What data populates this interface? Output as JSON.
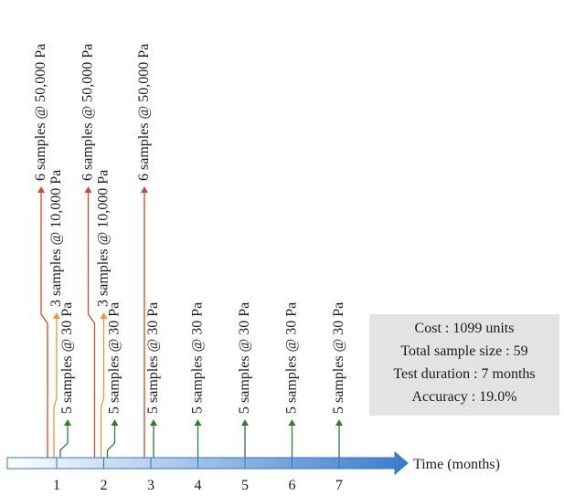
{
  "diagram": {
    "axis_label": "Time (months)",
    "ticks": [
      "1",
      "2",
      "3",
      "4",
      "5",
      "6",
      "7"
    ],
    "colors": {
      "high": "#d9462b",
      "mid": "#f0962a",
      "low": "#2e7d32",
      "axis": "#2f74c0"
    },
    "labels": {
      "high": "6 samples @ 50,000 Pa",
      "mid": "3 samples @ 10,000 Pa",
      "low": "5 samples @ 30 Pa"
    },
    "months": [
      {
        "month": "1",
        "tests": [
          "high",
          "mid",
          "low"
        ]
      },
      {
        "month": "2",
        "tests": [
          "high",
          "mid",
          "low"
        ]
      },
      {
        "month": "3",
        "tests": [
          "high",
          "low"
        ]
      },
      {
        "month": "4",
        "tests": [
          "low"
        ]
      },
      {
        "month": "5",
        "tests": [
          "low"
        ]
      },
      {
        "month": "6",
        "tests": [
          "low"
        ]
      },
      {
        "month": "7",
        "tests": [
          "low"
        ]
      }
    ]
  },
  "summary": {
    "cost": "Cost : 1099 units",
    "sample_size": "Total sample size : 59",
    "duration": "Test duration : 7 months",
    "accuracy": "Accuracy : 19.0%"
  }
}
